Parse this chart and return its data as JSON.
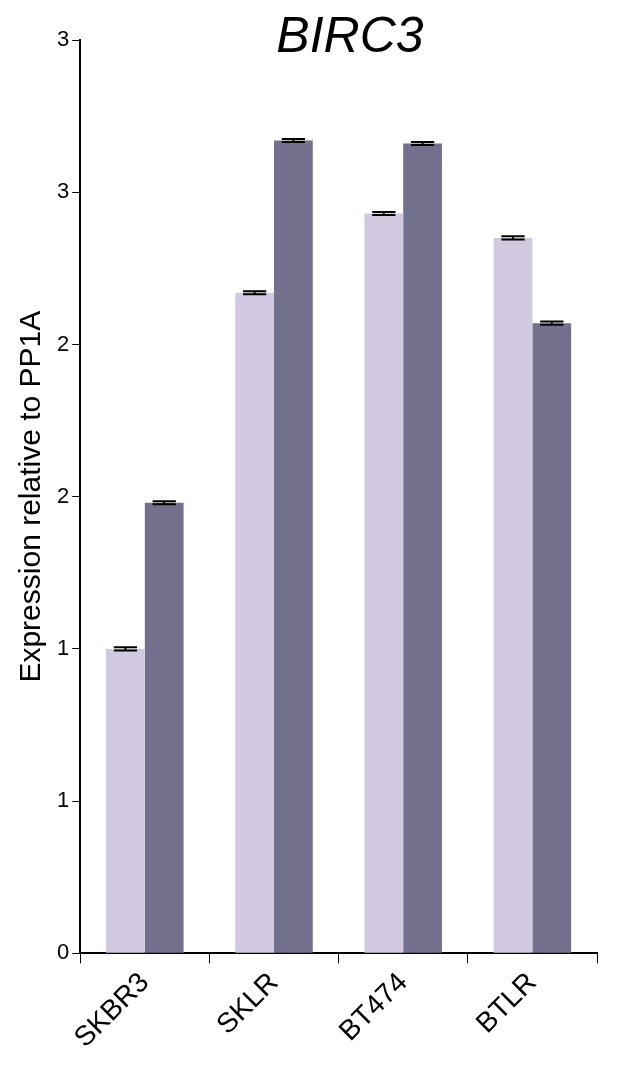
{
  "chart_data": {
    "type": "bar",
    "title": "BIRC3",
    "ylabel": "Expression relative to PP1A",
    "categories": [
      "SKBR3",
      "SKLR",
      "BT474",
      "BTLR"
    ],
    "series": [
      {
        "color": "#d0c9e0",
        "values": [
          1.0,
          2.17,
          2.43,
          2.35
        ],
        "errors": [
          0.005,
          0.005,
          0.005,
          0.005
        ]
      },
      {
        "color": "#72708c",
        "values": [
          1.48,
          2.67,
          2.66,
          2.07
        ],
        "errors": [
          0.005,
          0.005,
          0.005,
          0.005
        ]
      }
    ],
    "ylim": [
      0,
      3
    ],
    "yticks": [
      0,
      {
        "value": 0.5,
        "label": "1"
      },
      1,
      {
        "value": 1.5,
        "label": "2"
      },
      2,
      {
        "value": 2.5,
        "label": "3"
      },
      3
    ],
    "grid": false,
    "legend": false
  }
}
